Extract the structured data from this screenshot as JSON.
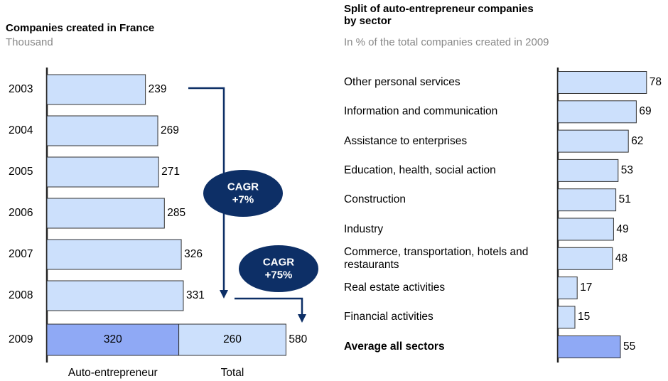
{
  "chart_data": [
    {
      "type": "hbar_stacked",
      "title": "Companies created in France",
      "subtitle": "Thousand",
      "categories": [
        "2003",
        "2004",
        "2005",
        "2006",
        "2007",
        "2008",
        "2009"
      ],
      "series": [
        {
          "name": "Auto-entrepreneur",
          "color": "#8fa9f5",
          "values": [
            null,
            null,
            null,
            null,
            null,
            null,
            320
          ]
        },
        {
          "name": "Total",
          "color": "#cce0fc",
          "values": [
            239,
            269,
            271,
            285,
            326,
            331,
            260
          ]
        }
      ],
      "total_label": 580,
      "annotations": [
        [
          "CAGR",
          "+7%"
        ],
        [
          "CAGR",
          "+75%"
        ]
      ],
      "xlim": [
        0,
        700
      ]
    },
    {
      "type": "hbar",
      "title": "Split of auto-entrepreneur companies by sector",
      "subtitle": "In % of the total companies created in 2009",
      "categories": [
        "Other personal services",
        "Information and communication",
        "Assistance to enterprises",
        "Education, health, social action",
        "Construction",
        "Industry",
        "Commerce, transportation, hotels and restaurants",
        "Real estate activities",
        "Financial activities",
        "Average all sectors"
      ],
      "values": [
        78,
        69,
        62,
        53,
        51,
        49,
        48,
        17,
        15,
        55
      ],
      "colors": [
        "#cce0fc",
        "#cce0fc",
        "#cce0fc",
        "#cce0fc",
        "#cce0fc",
        "#cce0fc",
        "#cce0fc",
        "#cce0fc",
        "#cce0fc",
        "#8fa9f5"
      ],
      "highlight": [
        9
      ],
      "xlim": [
        0,
        100
      ]
    }
  ]
}
